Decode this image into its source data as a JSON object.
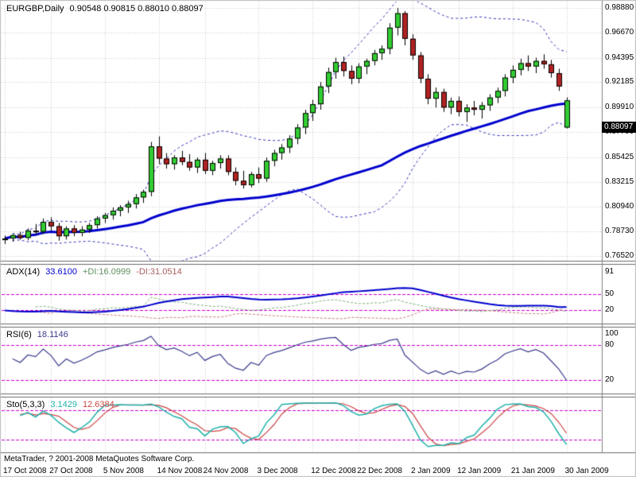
{
  "main": {
    "symbol_label": "EURGBP,Daily",
    "ohlc_text": "0.90548 0.90815 0.88010 0.88097",
    "price_axis_labels": [
      "0.98880",
      "0.96670",
      "0.94395",
      "0.92185",
      "0.89910",
      "0.87700",
      "0.85425",
      "0.83215",
      "0.80940",
      "0.78730",
      "0.76520"
    ],
    "current_price_tag": "0.88097"
  },
  "panels": {
    "adx": {
      "label": "ADX(14)",
      "value": "33.6100",
      "plus_di": "+DI:16.0999",
      "minus_di": "-DI:31.0514",
      "axis_values": [
        91,
        50,
        20
      ],
      "levels": [
        50,
        20
      ],
      "range": [
        0,
        100
      ]
    },
    "rsi": {
      "label": "RSI(6)",
      "value": "18.1146",
      "axis_values": [
        100,
        80,
        20
      ],
      "levels": [
        80,
        20
      ],
      "range": [
        0,
        107
      ]
    },
    "sto": {
      "label": "Sto(5,3,3)",
      "value": "3.1429",
      "signal_value": "12.6384",
      "axis_values": [],
      "levels": [
        80,
        20
      ],
      "range": [
        0,
        100
      ]
    }
  },
  "footer": {
    "copyright": "MetaTrader, ? 2001-2008 MetaQuotes Software Corp.",
    "date_ticks": [
      {
        "index": 0,
        "label": "17 Oct 2008"
      },
      {
        "index": 6,
        "label": "27 Oct 2008"
      },
      {
        "index": 13,
        "label": "5 Nov 2008"
      },
      {
        "index": 20,
        "label": "14 Nov 2008"
      },
      {
        "index": 26,
        "label": "24 Nov 2008"
      },
      {
        "index": 33,
        "label": "3 Dec 2008"
      },
      {
        "index": 40,
        "label": "12 Dec 2008"
      },
      {
        "index": 46,
        "label": "22 Dec 2008"
      },
      {
        "index": 53,
        "label": "2 Jan 2009"
      },
      {
        "index": 59,
        "label": "12 Jan 2009"
      },
      {
        "index": 66,
        "label": "21 Jan 2009"
      },
      {
        "index": 73,
        "label": "30 Jan 2009"
      }
    ]
  },
  "colors": {
    "bull": "#32CD32",
    "bear": "#B22222",
    "candle_outline": "#000000",
    "wick": "#000000",
    "ma": "#0000CD",
    "bollinger": "#3333B8",
    "adx": "#0000CD",
    "plus_di": "#7FAF7F",
    "minus_di": "#C97F7F",
    "rsi": "#3B3B8F",
    "sto_main": "#20B2AA",
    "sto_signal": "#CC4444",
    "level": "#CC00CC",
    "grid": "#C9C9C9",
    "axis_line": "#808080",
    "panel_border": "#6B6B6B",
    "frame": "#BBBBBB",
    "tag_bg": "#000000",
    "tag_text": "#FFFFFF",
    "text": "#000000"
  },
  "chart_data": {
    "type": "candlestick",
    "symbol": "EURGBP",
    "timeframe": "Daily",
    "latest_bar": {
      "open": 0.90548,
      "high": 0.90815,
      "low": 0.8801,
      "close": 0.88097
    },
    "price_range": [
      0.7609,
      0.9945
    ],
    "bull_color_override_indices": [
      73
    ],
    "indicators": {
      "ma": {
        "type": "SMA",
        "period": 50,
        "applied": "close"
      },
      "bollinger": {
        "period": 20,
        "deviation": 2
      },
      "adx": {
        "period": 14,
        "display_value": 33.61,
        "plus_di": 16.0999,
        "minus_di": 31.0514
      },
      "rsi": {
        "period": 6,
        "display_value": 18.1146
      },
      "stochastic": {
        "k": 5,
        "d": 3,
        "slowing": 3,
        "main": 3.1429,
        "signal": 12.6384
      }
    },
    "candles": [
      [
        0.7795,
        0.7835,
        0.776,
        0.781
      ],
      [
        0.781,
        0.785,
        0.778,
        0.784
      ],
      [
        0.784,
        0.787,
        0.78,
        0.7815
      ],
      [
        0.7815,
        0.79,
        0.7795,
        0.788
      ],
      [
        0.788,
        0.794,
        0.784,
        0.787
      ],
      [
        0.787,
        0.799,
        0.785,
        0.796
      ],
      [
        0.796,
        0.8,
        0.788,
        0.792
      ],
      [
        0.792,
        0.795,
        0.779,
        0.783
      ],
      [
        0.783,
        0.792,
        0.78,
        0.79
      ],
      [
        0.79,
        0.793,
        0.783,
        0.786
      ],
      [
        0.786,
        0.792,
        0.783,
        0.789
      ],
      [
        0.789,
        0.795,
        0.786,
        0.793
      ],
      [
        0.793,
        0.801,
        0.79,
        0.799
      ],
      [
        0.799,
        0.804,
        0.795,
        0.802
      ],
      [
        0.802,
        0.809,
        0.798,
        0.806
      ],
      [
        0.806,
        0.811,
        0.801,
        0.809
      ],
      [
        0.809,
        0.815,
        0.804,
        0.812
      ],
      [
        0.812,
        0.821,
        0.808,
        0.818
      ],
      [
        0.818,
        0.825,
        0.813,
        0.823
      ],
      [
        0.823,
        0.868,
        0.819,
        0.864
      ],
      [
        0.864,
        0.873,
        0.848,
        0.853
      ],
      [
        0.853,
        0.858,
        0.844,
        0.848
      ],
      [
        0.848,
        0.856,
        0.843,
        0.854
      ],
      [
        0.854,
        0.86,
        0.847,
        0.85
      ],
      [
        0.85,
        0.857,
        0.842,
        0.845
      ],
      [
        0.845,
        0.854,
        0.84,
        0.852
      ],
      [
        0.852,
        0.858,
        0.839,
        0.842
      ],
      [
        0.842,
        0.851,
        0.838,
        0.849
      ],
      [
        0.849,
        0.856,
        0.844,
        0.853
      ],
      [
        0.853,
        0.856,
        0.838,
        0.841
      ],
      [
        0.841,
        0.845,
        0.829,
        0.833
      ],
      [
        0.833,
        0.842,
        0.826,
        0.829
      ],
      [
        0.829,
        0.841,
        0.827,
        0.839
      ],
      [
        0.839,
        0.845,
        0.831,
        0.835
      ],
      [
        0.835,
        0.854,
        0.832,
        0.851
      ],
      [
        0.851,
        0.861,
        0.846,
        0.858
      ],
      [
        0.858,
        0.866,
        0.852,
        0.863
      ],
      [
        0.863,
        0.874,
        0.858,
        0.871
      ],
      [
        0.871,
        0.884,
        0.866,
        0.881
      ],
      [
        0.881,
        0.897,
        0.875,
        0.894
      ],
      [
        0.894,
        0.906,
        0.887,
        0.902
      ],
      [
        0.902,
        0.922,
        0.897,
        0.918
      ],
      [
        0.918,
        0.935,
        0.912,
        0.931
      ],
      [
        0.931,
        0.944,
        0.925,
        0.94
      ],
      [
        0.94,
        0.945,
        0.927,
        0.932
      ],
      [
        0.932,
        0.937,
        0.92,
        0.925
      ],
      [
        0.925,
        0.939,
        0.921,
        0.936
      ],
      [
        0.936,
        0.943,
        0.929,
        0.941
      ],
      [
        0.941,
        0.951,
        0.937,
        0.948
      ],
      [
        0.948,
        0.955,
        0.942,
        0.952
      ],
      [
        0.952,
        0.975,
        0.947,
        0.971
      ],
      [
        0.971,
        0.9888,
        0.964,
        0.984
      ],
      [
        0.984,
        0.986,
        0.955,
        0.961
      ],
      [
        0.961,
        0.965,
        0.942,
        0.946
      ],
      [
        0.946,
        0.949,
        0.921,
        0.925
      ],
      [
        0.925,
        0.929,
        0.902,
        0.907
      ],
      [
        0.907,
        0.917,
        0.899,
        0.913
      ],
      [
        0.913,
        0.916,
        0.895,
        0.899
      ],
      [
        0.899,
        0.908,
        0.893,
        0.905
      ],
      [
        0.905,
        0.909,
        0.891,
        0.895
      ],
      [
        0.895,
        0.902,
        0.886,
        0.899
      ],
      [
        0.899,
        0.905,
        0.892,
        0.897
      ],
      [
        0.897,
        0.904,
        0.889,
        0.901
      ],
      [
        0.901,
        0.911,
        0.896,
        0.908
      ],
      [
        0.908,
        0.917,
        0.903,
        0.914
      ],
      [
        0.914,
        0.929,
        0.909,
        0.926
      ],
      [
        0.926,
        0.937,
        0.921,
        0.933
      ],
      [
        0.933,
        0.943,
        0.928,
        0.939
      ],
      [
        0.939,
        0.946,
        0.932,
        0.936
      ],
      [
        0.936,
        0.944,
        0.93,
        0.941
      ],
      [
        0.941,
        0.947,
        0.934,
        0.938
      ],
      [
        0.938,
        0.942,
        0.926,
        0.93
      ],
      [
        0.93,
        0.934,
        0.914,
        0.918
      ],
      [
        0.90548,
        0.90815,
        0.8801,
        0.88097
      ]
    ]
  }
}
